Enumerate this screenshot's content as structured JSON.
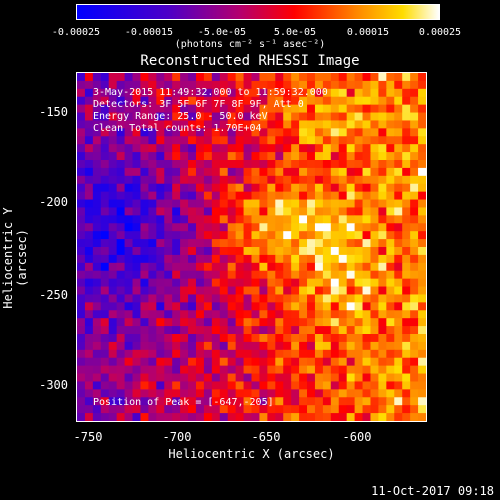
{
  "colorbar": {
    "ticks": [
      "-0.00025",
      "-0.00015",
      "-5.0e-05",
      "5.0e-05",
      "0.00015",
      "0.00025"
    ],
    "unit": "(photons cm⁻² s⁻¹ asec⁻²)"
  },
  "title": "Reconstructed RHESSI Image",
  "info": {
    "time": "3-May-2015 11:49:32.000 to 11:59:32.000",
    "detectors": "Detectors: 3F 5F 6F 7F 8F 9F, Att 0",
    "energy": "Energy Range: 25.0 - 50.0 keV",
    "clean": "Clean     Total counts: 1.70E+04"
  },
  "peak": "Position of Peak = [-647,-205]",
  "axes": {
    "xlabel": "Heliocentric X (arcsec)",
    "ylabel": "Heliocentric Y (arcsec)",
    "xticks": [
      "-750",
      "-700",
      "-650",
      "-600"
    ],
    "yticks": [
      "-150",
      "-200",
      "-250",
      "-300"
    ]
  },
  "timestamp": "11-Oct-2017 09:18"
}
